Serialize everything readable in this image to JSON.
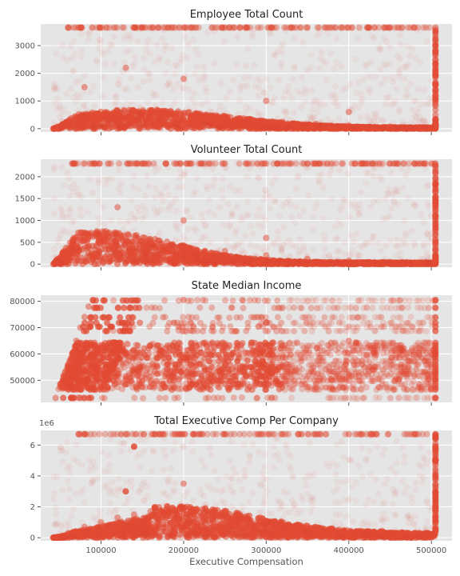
{
  "figure": {
    "xlabel": "Executive Compensation",
    "point_color": "#e24a33",
    "panel_background": "#e5e5e5",
    "grid": true
  },
  "chart_data": [
    {
      "type": "scatter",
      "title": "Employee Total Count",
      "xlabel": "",
      "ylabel": "",
      "xlim": [
        27000,
        525000
      ],
      "ylim": [
        -120,
        3780
      ],
      "xticks": [],
      "xtick_labels": [],
      "yticks": [
        0,
        1000,
        2000,
        3000
      ],
      "ytick_labels": [
        "0",
        "1000",
        "2000",
        "3000"
      ],
      "offset_label": "",
      "points": [
        [
          45000,
          20
        ],
        [
          55000,
          150
        ],
        [
          62000,
          300
        ],
        [
          75000,
          420
        ],
        [
          90000,
          520
        ],
        [
          105000,
          600
        ],
        [
          120000,
          650
        ],
        [
          140000,
          640
        ],
        [
          160000,
          620
        ],
        [
          180000,
          600
        ],
        [
          200000,
          560
        ],
        [
          220000,
          500
        ],
        [
          250000,
          420
        ],
        [
          280000,
          330
        ],
        [
          320000,
          250
        ],
        [
          360000,
          180
        ],
        [
          400000,
          120
        ],
        [
          450000,
          80
        ],
        [
          505000,
          0
        ],
        [
          505000,
          1200
        ],
        [
          505000,
          2500
        ],
        [
          505000,
          3650
        ],
        [
          60000,
          3650
        ],
        [
          150000,
          3650
        ],
        [
          250000,
          3650
        ],
        [
          350000,
          3650
        ],
        [
          450000,
          3650
        ],
        [
          80000,
          1500
        ],
        [
          130000,
          2200
        ],
        [
          200000,
          1800
        ],
        [
          300000,
          1000
        ],
        [
          400000,
          600
        ]
      ]
    },
    {
      "type": "scatter",
      "title": "Volunteer Total Count",
      "xlabel": "",
      "ylabel": "",
      "xlim": [
        27000,
        525000
      ],
      "ylim": [
        -70,
        2400
      ],
      "xticks": [],
      "xtick_labels": [],
      "yticks": [
        0,
        500,
        1000,
        1500,
        2000
      ],
      "ytick_labels": [
        "0",
        "500",
        "1000",
        "1500",
        "2000"
      ],
      "offset_label": "",
      "points": [
        [
          45000,
          10
        ],
        [
          55000,
          200
        ],
        [
          65000,
          450
        ],
        [
          75000,
          600
        ],
        [
          85000,
          700
        ],
        [
          95000,
          750
        ],
        [
          110000,
          650
        ],
        [
          130000,
          550
        ],
        [
          160000,
          480
        ],
        [
          200000,
          430
        ],
        [
          250000,
          300
        ],
        [
          300000,
          200
        ],
        [
          350000,
          120
        ],
        [
          400000,
          80
        ],
        [
          450000,
          50
        ],
        [
          505000,
          0
        ],
        [
          505000,
          800
        ],
        [
          505000,
          2300
        ],
        [
          65000,
          2300
        ],
        [
          150000,
          2300
        ],
        [
          250000,
          2300
        ],
        [
          350000,
          2300
        ],
        [
          450000,
          2300
        ],
        [
          120000,
          1300
        ],
        [
          200000,
          1000
        ],
        [
          300000,
          600
        ]
      ]
    },
    {
      "type": "scatter",
      "title": "State Median Income",
      "xlabel": "",
      "ylabel": "",
      "xlim": [
        27000,
        525000
      ],
      "ylim": [
        41600,
        82300
      ],
      "xticks": [],
      "xtick_labels": [],
      "yticks": [
        50000,
        60000,
        70000,
        80000
      ],
      "ytick_labels": [
        "50000",
        "60000",
        "70000",
        "80000"
      ],
      "offset_label": "",
      "points": [
        [
          45000,
          43300
        ],
        [
          55000,
          50000
        ],
        [
          60000,
          55000
        ],
        [
          65000,
          60000
        ],
        [
          70000,
          65000
        ],
        [
          75000,
          70000
        ],
        [
          80000,
          74000
        ],
        [
          85000,
          78000
        ],
        [
          90000,
          80500
        ],
        [
          200000,
          80500
        ],
        [
          300000,
          72000
        ],
        [
          400000,
          65000
        ],
        [
          505000,
          43300
        ],
        [
          505000,
          60000
        ],
        [
          505000,
          80500
        ]
      ]
    },
    {
      "type": "scatter",
      "title": "Total Executive Comp Per Company",
      "xlabel": "Executive Compensation",
      "ylabel": "",
      "xlim": [
        27000,
        525000
      ],
      "ylim": [
        -200000,
        6950000
      ],
      "xticks": [
        100000,
        200000,
        300000,
        400000,
        500000
      ],
      "xtick_labels": [
        "100000",
        "200000",
        "300000",
        "400000",
        "500000"
      ],
      "yticks": [
        0,
        2000000,
        4000000,
        6000000
      ],
      "ytick_labels": [
        "0",
        "2",
        "4",
        "6"
      ],
      "offset_label": "1e6",
      "points": [
        [
          45000,
          40000
        ],
        [
          60000,
          300000
        ],
        [
          80000,
          700000
        ],
        [
          100000,
          1000000
        ],
        [
          120000,
          1300000
        ],
        [
          140000,
          1500000
        ],
        [
          160000,
          1700000
        ],
        [
          180000,
          1900000
        ],
        [
          200000,
          1800000
        ],
        [
          240000,
          1500000
        ],
        [
          280000,
          1100000
        ],
        [
          320000,
          800000
        ],
        [
          380000,
          600000
        ],
        [
          440000,
          450000
        ],
        [
          505000,
          500000
        ],
        [
          505000,
          3000000
        ],
        [
          505000,
          6700000
        ],
        [
          80000,
          6700000
        ],
        [
          250000,
          6700000
        ],
        [
          400000,
          6700000
        ],
        [
          140000,
          5900000
        ],
        [
          130000,
          3000000
        ],
        [
          200000,
          3500000
        ]
      ]
    }
  ]
}
